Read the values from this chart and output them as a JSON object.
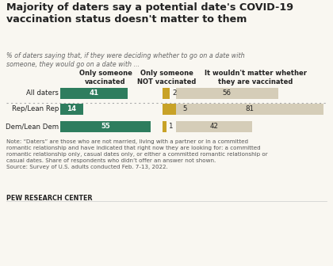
{
  "title": "Majority of daters say a potential date's COVID-19\nvaccination status doesn't matter to them",
  "subtitle": "% of daters saying that, if they were deciding whether to go on a date with\nsomeone, they would go on a date with ...",
  "categories": [
    "All daters",
    "Rep/Lean Rep",
    "Dem/Lean Dem"
  ],
  "col_headers_1": "Only someone\nvaccinated",
  "col_headers_2": "Only someone\nNOT vaccinated",
  "col_headers_3": "It wouldn't matter whether\nthey are vaccinated",
  "vaccinated": [
    41,
    14,
    55
  ],
  "not_vaccinated": [
    2,
    5,
    1
  ],
  "doesnt_matter": [
    56,
    81,
    42
  ],
  "color_vaccinated": "#2e7d5e",
  "color_not_vaccinated": "#c8a227",
  "color_doesnt_matter": "#d5cdb8",
  "note": "Note: “Daters” are those who are not married, living with a partner or in a committed\nromantic relationship and have indicated that right now they are looking for: a committed\nromantic relationship only, casual dates only, or either a committed romantic relationship or\ncasual dates. Share of respondents who didn’t offer an answer not shown.\nSource: Survey of U.S. adults conducted Feb. 7-13, 2022.",
  "source_label": "PEW RESEARCH CENTER",
  "background_color": "#f9f7f1",
  "text_color": "#222222",
  "divider_color": "#aaaaaa",
  "white": "#ffffff"
}
